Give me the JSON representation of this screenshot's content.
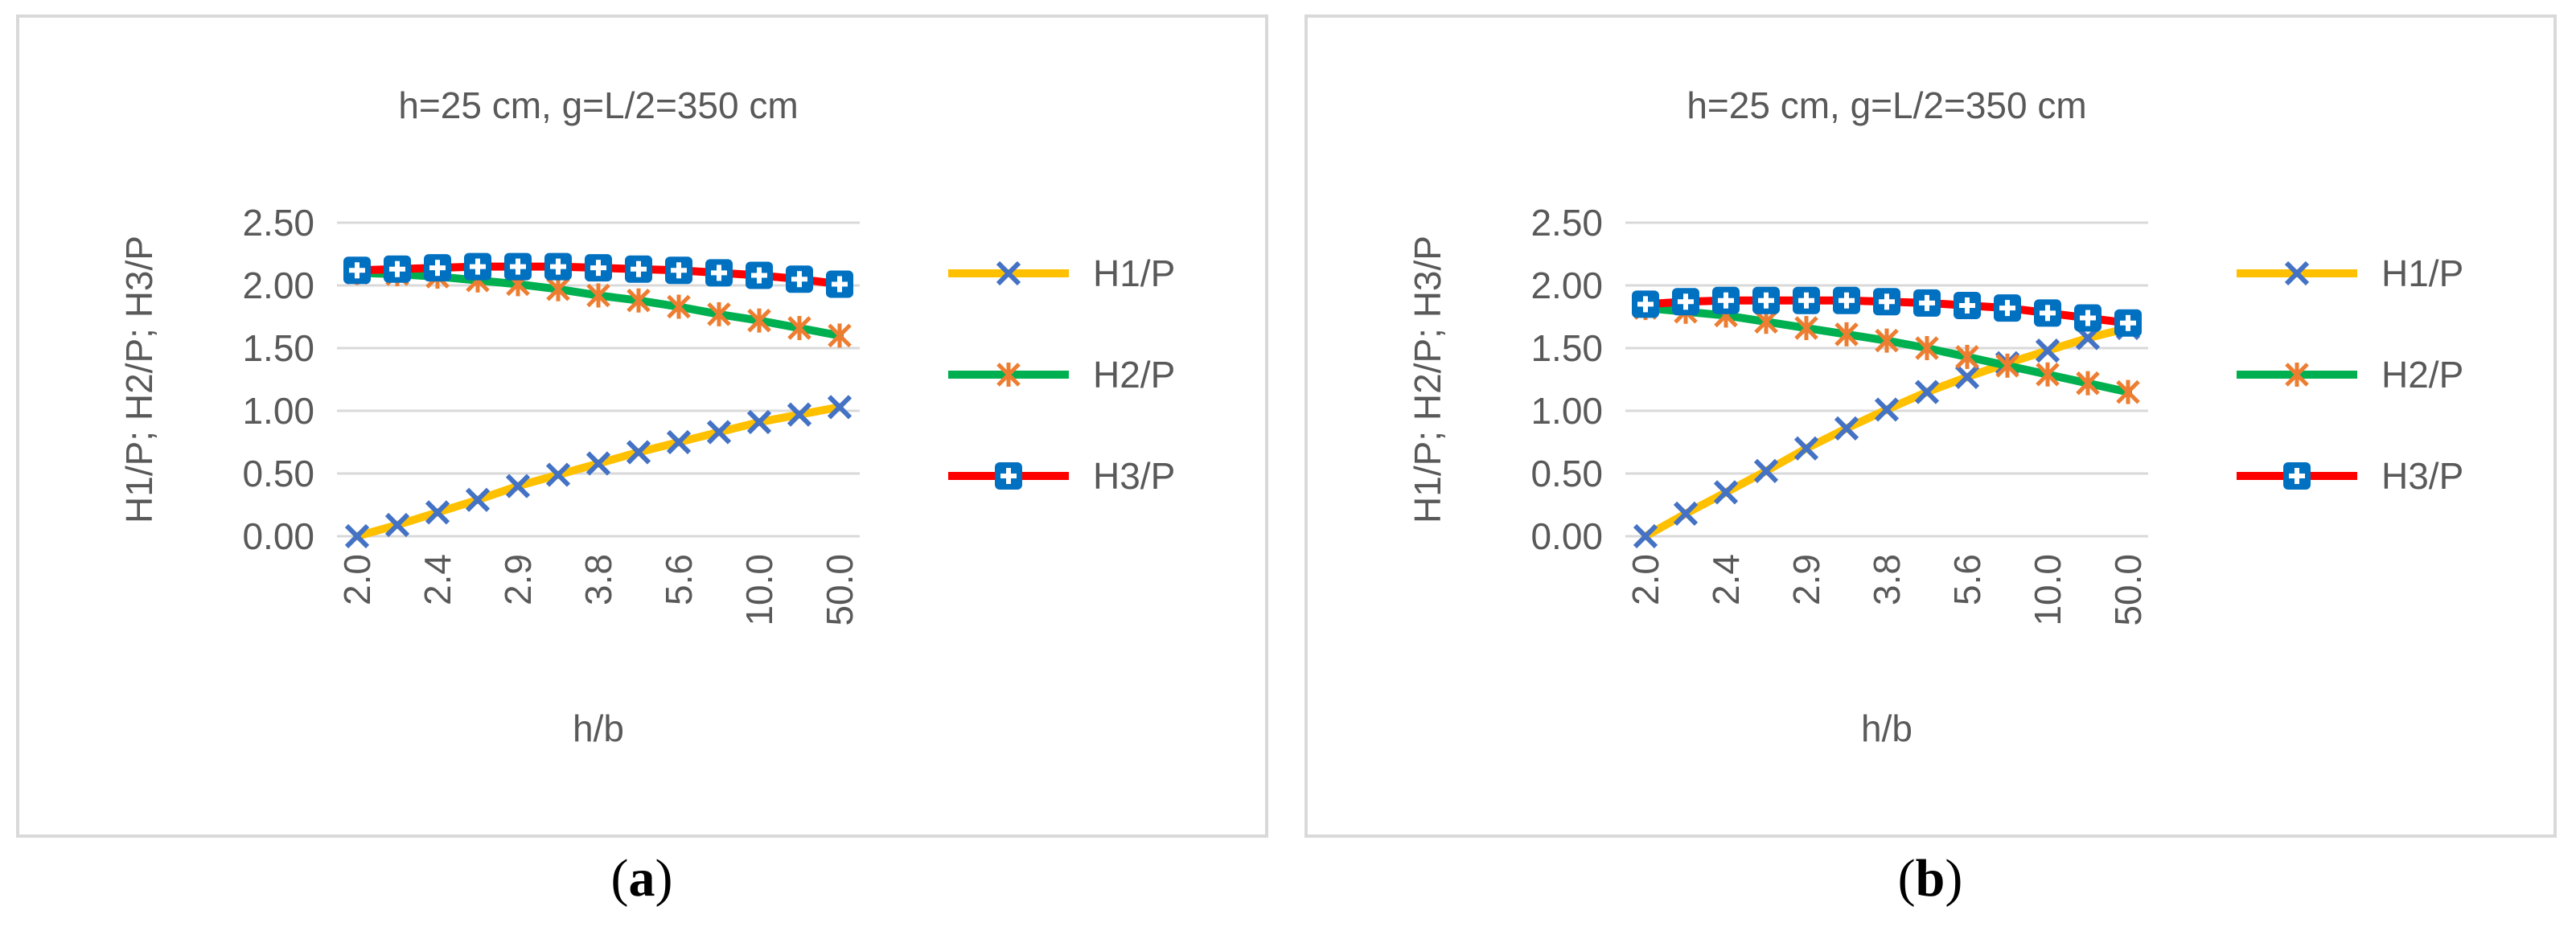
{
  "captions": {
    "a": "a",
    "b": "b"
  },
  "colors": {
    "H1/P_line": "#FFC000",
    "H1/P_marker": "#4472C4",
    "H2/P_line": "#00B050",
    "H2/P_marker": "#ED7D31",
    "H3/P_line": "#FF0000",
    "H3/P_marker": "#0070C0",
    "grid": "#d9d9d9",
    "text": "#595959"
  },
  "chart_data": [
    {
      "type": "line",
      "panel": "a",
      "title": "h=25 cm, g=L/2=350 cm",
      "xlabel": "h/b",
      "ylabel": "H1/P; H2/P; H3/P",
      "ylim": [
        0,
        2.5
      ],
      "yticks": [
        "0.00",
        "0.50",
        "1.00",
        "1.50",
        "2.00",
        "2.50"
      ],
      "xticks": [
        "2.0",
        "2.4",
        "2.9",
        "3.8",
        "5.6",
        "10.0",
        "50.0"
      ],
      "n_points": 13,
      "grid": true,
      "legend": "right",
      "series": [
        {
          "name": "H1/P",
          "marker": "x",
          "values": [
            0.0,
            0.09,
            0.19,
            0.29,
            0.4,
            0.49,
            0.58,
            0.67,
            0.75,
            0.83,
            0.91,
            0.97,
            1.03
          ]
        },
        {
          "name": "H2/P",
          "marker": "asterisk",
          "values": [
            2.1,
            2.09,
            2.07,
            2.04,
            2.01,
            1.97,
            1.92,
            1.88,
            1.83,
            1.77,
            1.72,
            1.66,
            1.6
          ]
        },
        {
          "name": "H3/P",
          "marker": "plus-square",
          "values": [
            2.12,
            2.13,
            2.14,
            2.15,
            2.15,
            2.15,
            2.14,
            2.13,
            2.12,
            2.1,
            2.08,
            2.05,
            2.01
          ]
        }
      ]
    },
    {
      "type": "line",
      "panel": "b",
      "title": "h=25 cm, g=L/2=350 cm",
      "xlabel": "h/b",
      "ylabel": "H1/P; H2/P; H3/P",
      "ylim": [
        0,
        2.5
      ],
      "yticks": [
        "0.00",
        "0.50",
        "1.00",
        "1.50",
        "2.00",
        "2.50"
      ],
      "xticks": [
        "2.0",
        "2.4",
        "2.9",
        "3.8",
        "5.6",
        "10.0",
        "50.0"
      ],
      "n_points": 13,
      "grid": true,
      "legend": "right",
      "series": [
        {
          "name": "H1/P",
          "marker": "x",
          "values": [
            0.0,
            0.18,
            0.35,
            0.52,
            0.7,
            0.86,
            1.01,
            1.15,
            1.27,
            1.38,
            1.48,
            1.58,
            1.66
          ]
        },
        {
          "name": "H2/P",
          "marker": "asterisk",
          "values": [
            1.82,
            1.79,
            1.76,
            1.71,
            1.66,
            1.61,
            1.56,
            1.5,
            1.43,
            1.36,
            1.29,
            1.22,
            1.15
          ]
        },
        {
          "name": "H3/P",
          "marker": "plus-square",
          "values": [
            1.85,
            1.87,
            1.88,
            1.88,
            1.88,
            1.88,
            1.87,
            1.86,
            1.84,
            1.82,
            1.78,
            1.74,
            1.7
          ]
        }
      ]
    }
  ]
}
